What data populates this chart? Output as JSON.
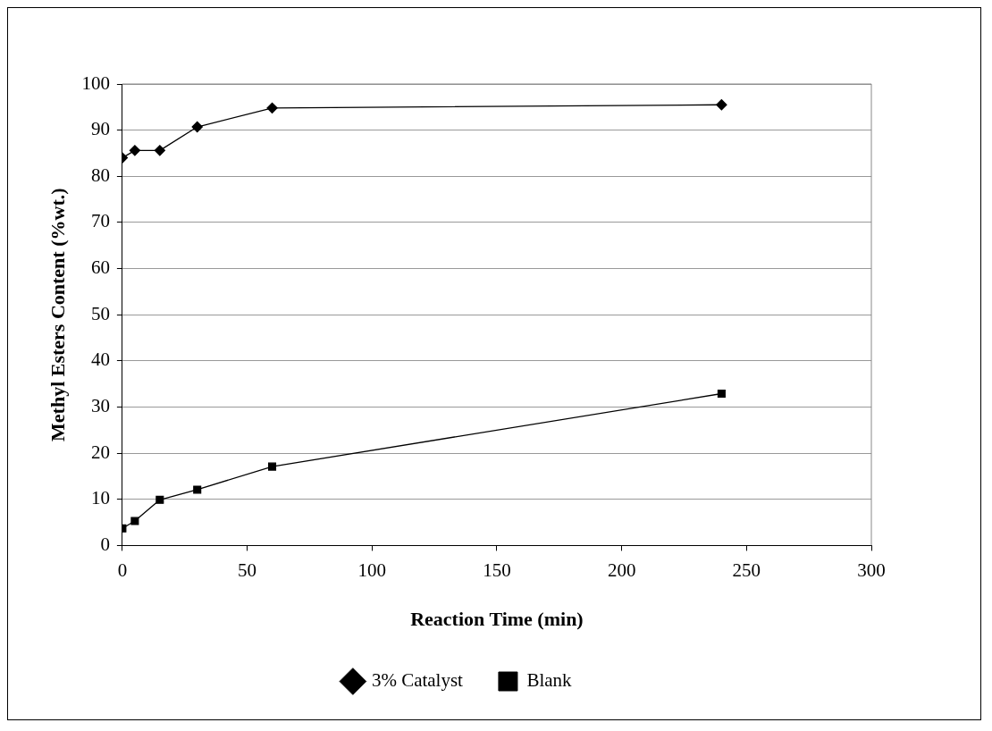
{
  "chart_data": {
    "type": "line",
    "xlabel": "Reaction Time (min)",
    "ylabel": "Methyl Esters Content (%wt.)",
    "xlim": [
      0,
      300
    ],
    "xticks": [
      0,
      50,
      100,
      150,
      200,
      250,
      300
    ],
    "ylim": [
      0,
      100
    ],
    "yticks": [
      0,
      10,
      20,
      30,
      40,
      50,
      60,
      70,
      80,
      90,
      100
    ],
    "grid": "y",
    "legend": "bottom",
    "line_style": "solid",
    "series": [
      {
        "name": "3% Catalyst",
        "color": "#000000",
        "marker": "diamond",
        "x": [
          0,
          5,
          15,
          30,
          60,
          240
        ],
        "values": [
          84,
          85.6,
          85.6,
          90.7,
          94.8,
          95.5
        ]
      },
      {
        "name": "Blank",
        "color": "#000000",
        "marker": "square",
        "x": [
          0,
          5,
          15,
          30,
          60,
          240
        ],
        "values": [
          3.7,
          5.3,
          9.9,
          12.1,
          17.1,
          32.9
        ]
      }
    ]
  }
}
